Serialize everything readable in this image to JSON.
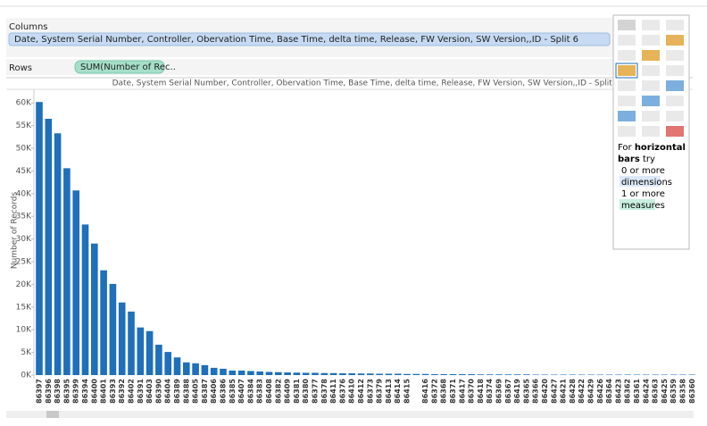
{
  "shelves": {
    "columns_label": "Columns",
    "columns_pill": "Date, System Serial Number, Controller, Obervation Time, Base Time, delta time, Release, FW Version, SW Version,,ID - Split 6",
    "rows_label": "Rows",
    "rows_pill": "SUM(Number of Rec.."
  },
  "show_me": {
    "hint": [
      "For",
      "horizontal",
      "bars",
      "try",
      "0 or more",
      "dimensions",
      "1 or more",
      "measures"
    ]
  },
  "chart_data": {
    "type": "bar",
    "title": "Date, System Serial Number, Controller, Obervation Time, Base Time, delta time, Release, FW Version, SW Version,,ID - Split 6",
    "y_label": "Number of Records",
    "color": "#1f6fba",
    "categories": [
      "86397",
      "86396",
      "86398",
      "86395",
      "86399",
      "86394",
      "86400",
      "86401",
      "86393",
      "86392",
      "86402",
      "86391",
      "86403",
      "86390",
      "86404",
      "86389",
      "86388",
      "86405",
      "86387",
      "86406",
      "86386",
      "86385",
      "86407",
      "86384",
      "86383",
      "86408",
      "86382",
      "86409",
      "86381",
      "86380",
      "86377",
      "86378",
      "86411",
      "86376",
      "86410",
      "86412",
      "86373",
      "86379",
      "86413",
      "86414",
      "86415",
      null,
      "86416",
      "86372",
      "86368",
      "86371",
      "86417",
      "86370",
      "86418",
      "86374",
      "86369",
      "86367",
      "86419",
      "86365",
      "86366",
      "86420",
      "86427",
      "86421",
      "86428",
      "86422",
      "86429",
      "86426",
      "86364",
      "86423",
      "86362",
      "86361",
      "86424",
      "86363",
      "86425",
      "86359",
      "86358",
      "86360"
    ],
    "values": [
      60200,
      56500,
      53300,
      45600,
      40700,
      33200,
      29000,
      23100,
      20100,
      16000,
      14000,
      10500,
      9700,
      6700,
      5100,
      3900,
      2800,
      2600,
      2200,
      1600,
      1400,
      1000,
      1000,
      900,
      800,
      700,
      650,
      600,
      550,
      500,
      500,
      450,
      450,
      400,
      400,
      350,
      350,
      300,
      300,
      300,
      250,
      250,
      250,
      200,
      200,
      200,
      200,
      200,
      150,
      150,
      150,
      150,
      150,
      150,
      100,
      100,
      100,
      100,
      100,
      100,
      100,
      100,
      100,
      100,
      100,
      100,
      100,
      100,
      100,
      100,
      100,
      100
    ],
    "ylim": [
      0,
      63000
    ],
    "yticks": [
      {
        "value": 0,
        "label": "0K"
      },
      {
        "value": 5000,
        "label": "5K"
      },
      {
        "value": 10000,
        "label": "10K"
      },
      {
        "value": 15000,
        "label": "15K"
      },
      {
        "value": 20000,
        "label": "20K"
      },
      {
        "value": 25000,
        "label": "25K"
      },
      {
        "value": 30000,
        "label": "30K"
      },
      {
        "value": 35000,
        "label": "35K"
      },
      {
        "value": 40000,
        "label": "40K"
      },
      {
        "value": 45000,
        "label": "45K"
      },
      {
        "value": 50000,
        "label": "50K"
      },
      {
        "value": 55000,
        "label": "55K"
      },
      {
        "value": 60000,
        "label": "60K"
      }
    ]
  }
}
